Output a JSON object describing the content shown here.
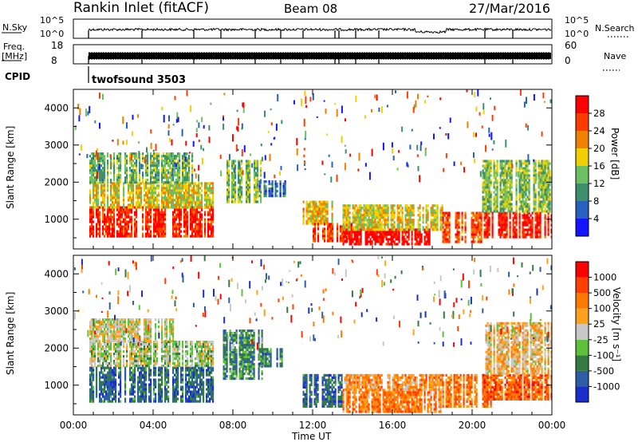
{
  "header": {
    "title": "Rankin Inlet (fitACF)",
    "beam": "Beam 08",
    "date": "27/Mar/2016"
  },
  "status_panels": {
    "nsky_label": "N.Sky",
    "nsky_ticks": [
      "10^5",
      "10^0"
    ],
    "nsearch_label": "N.Search",
    "nsearch_ticks": [
      "10^5",
      "10^0"
    ],
    "freq_label_1": "Freq.",
    "freq_label_2": "[MHz]",
    "freq_ticks": [
      "18",
      "8"
    ],
    "nave_label": "Nave",
    "nave_ticks": [
      "60",
      "0"
    ],
    "cpid_label": "CPID",
    "cpid_value": "twofsound 3503"
  },
  "chart_data": [
    {
      "type": "heatmap",
      "name": "power",
      "ylabel": "Slant Range [km]",
      "yticks": [
        "1000",
        "2000",
        "3000",
        "4000"
      ],
      "ylim": [
        200,
        4500
      ],
      "x_ticks": [
        "00:00",
        "04:00",
        "08:00",
        "12:00",
        "16:00",
        "20:00",
        "00:00"
      ],
      "colorbar": {
        "label": "Power [dB]",
        "ticks": [
          "4",
          "8",
          "12",
          "16",
          "20",
          "24",
          "28"
        ],
        "colors": [
          "#1414ff",
          "#2860c0",
          "#3c8f6a",
          "#6cc062",
          "#f0d000",
          "#f08000",
          "#ff3c00",
          "#ff0000"
        ]
      },
      "regions": [
        {
          "t0": 0.8,
          "t1": 7.0,
          "r0": 550,
          "r1": 1350,
          "level": 0.88
        },
        {
          "t0": 0.8,
          "t1": 7.0,
          "r0": 1350,
          "r1": 2000,
          "level": 0.55
        },
        {
          "t0": 0.8,
          "t1": 6.0,
          "r0": 2000,
          "r1": 2800,
          "level": 0.4
        },
        {
          "t0": 7.6,
          "t1": 9.4,
          "r0": 1500,
          "r1": 2600,
          "level": 0.45
        },
        {
          "t0": 9.3,
          "t1": 10.6,
          "r0": 1600,
          "r1": 2050,
          "level": 0.25
        },
        {
          "t0": 11.5,
          "t1": 13.0,
          "r0": 900,
          "r1": 1500,
          "level": 0.6
        },
        {
          "t0": 12.0,
          "t1": 14.0,
          "r0": 400,
          "r1": 900,
          "level": 0.85
        },
        {
          "t0": 13.5,
          "t1": 18.0,
          "r0": 300,
          "r1": 750,
          "level": 0.97
        },
        {
          "t0": 13.5,
          "t1": 18.5,
          "r0": 750,
          "r1": 1400,
          "level": 0.55
        },
        {
          "t0": 18.5,
          "t1": 20.5,
          "r0": 400,
          "r1": 1200,
          "level": 0.78
        },
        {
          "t0": 20.5,
          "t1": 24.0,
          "r0": 500,
          "r1": 1200,
          "level": 0.9
        },
        {
          "t0": 20.5,
          "t1": 24.0,
          "r0": 1200,
          "r1": 2600,
          "level": 0.45
        }
      ]
    },
    {
      "type": "heatmap",
      "name": "velocity",
      "ylabel": "Slant Range [km]",
      "yticks": [
        "1000",
        "2000",
        "3000",
        "4000"
      ],
      "ylim": [
        200,
        4500
      ],
      "xlabel": "Time UT",
      "x_ticks": [
        "00:00",
        "04:00",
        "08:00",
        "12:00",
        "16:00",
        "20:00",
        "00:00"
      ],
      "colorbar": {
        "label": "Velocity [m s⁻¹]",
        "ticks": [
          "1000",
          "500",
          "100",
          "25",
          "-25",
          "-100",
          "-500",
          "-1000"
        ],
        "colors": [
          "#1a2ecc",
          "#2c5da6",
          "#357a40",
          "#5ec13a",
          "#c8c8c8",
          "#ffa11c",
          "#ff7800",
          "#ff4000",
          "#ff0000"
        ]
      },
      "regions": [
        {
          "t0": 0.8,
          "t1": 7.0,
          "r0": 550,
          "r1": 1500,
          "level": 0.2
        },
        {
          "t0": 0.8,
          "t1": 7.0,
          "r0": 1500,
          "r1": 2200,
          "level": 0.45
        },
        {
          "t0": 0.8,
          "t1": 5.0,
          "r0": 2200,
          "r1": 2800,
          "level": 0.5
        },
        {
          "t0": 7.5,
          "t1": 9.5,
          "r0": 1200,
          "r1": 2500,
          "level": 0.3
        },
        {
          "t0": 9.3,
          "t1": 10.5,
          "r0": 1500,
          "r1": 2000,
          "level": 0.25
        },
        {
          "t0": 11.5,
          "t1": 13.5,
          "r0": 400,
          "r1": 1300,
          "level": 0.2
        },
        {
          "t0": 13.5,
          "t1": 18.5,
          "r0": 300,
          "r1": 900,
          "level": 0.7
        },
        {
          "t0": 13.5,
          "t1": 18.5,
          "r0": 900,
          "r1": 1300,
          "level": 0.65
        },
        {
          "t0": 18.5,
          "t1": 21.0,
          "r0": 400,
          "r1": 1300,
          "level": 0.72
        },
        {
          "t0": 20.5,
          "t1": 24.0,
          "r0": 600,
          "r1": 1300,
          "level": 0.78
        },
        {
          "t0": 20.5,
          "t1": 24.0,
          "r0": 1300,
          "r1": 2700,
          "level": 0.58
        }
      ]
    }
  ]
}
